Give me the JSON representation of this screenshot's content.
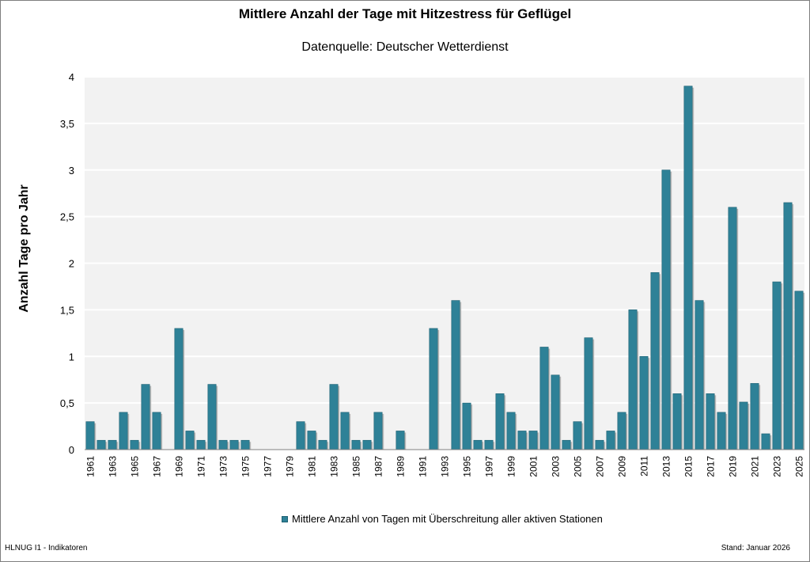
{
  "footer": {
    "left": "HLNUG I1 - Indikatoren",
    "right": "Stand: Januar 2026"
  },
  "colors": {
    "bar": "#2e8197",
    "bar_edge": "#1e6173",
    "plot_bg": "#f2f2f2",
    "grid": "#ffffff"
  },
  "chart_data": {
    "type": "bar",
    "title": "Mittlere Anzahl der Tage mit Hitzestress für Geflügel",
    "subtitle": "Datenquelle:  Deutscher Wetterdienst",
    "xlabel": "",
    "ylabel": "Anzahl Tage pro Jahr",
    "ylim": [
      0,
      4
    ],
    "yticks": [
      0,
      0.5,
      1,
      1.5,
      2,
      2.5,
      3,
      3.5,
      4
    ],
    "ytick_labels": [
      "0",
      "0,5",
      "1",
      "1,5",
      "2",
      "2,5",
      "3",
      "3,5",
      "4"
    ],
    "grid": true,
    "legend_position": "bottom",
    "categories": [
      "1961",
      "1962",
      "1963",
      "1964",
      "1965",
      "1966",
      "1967",
      "1968",
      "1969",
      "1970",
      "1971",
      "1972",
      "1973",
      "1974",
      "1975",
      "1976",
      "1977",
      "1978",
      "1979",
      "1980",
      "1981",
      "1982",
      "1983",
      "1984",
      "1985",
      "1986",
      "1987",
      "1988",
      "1989",
      "1990",
      "1991",
      "1992",
      "1993",
      "1994",
      "1995",
      "1996",
      "1997",
      "1998",
      "1999",
      "2000",
      "2001",
      "2002",
      "2003",
      "2004",
      "2005",
      "2006",
      "2007",
      "2008",
      "2009",
      "2010",
      "2011",
      "2012",
      "2013",
      "2014",
      "2015",
      "2016",
      "2017",
      "2018",
      "2019",
      "2020",
      "2021",
      "2022",
      "2023",
      "2024",
      "2025"
    ],
    "xtick_labels_shown": [
      "1961",
      "1963",
      "1965",
      "1967",
      "1969",
      "1971",
      "1973",
      "1975",
      "1977",
      "1979",
      "1981",
      "1983",
      "1985",
      "1987",
      "1989",
      "1991",
      "1993",
      "1995",
      "1997",
      "1999",
      "2001",
      "2003",
      "2005",
      "2007",
      "2009",
      "2011",
      "2013",
      "2015",
      "2017",
      "2019",
      "2021",
      "2023",
      "2025"
    ],
    "series": [
      {
        "name": "Mittlere Anzahl von Tagen mit Überschreitung aller aktiven Stationen",
        "values": [
          0.3,
          0.1,
          0.1,
          0.4,
          0.1,
          0.7,
          0.4,
          0,
          1.3,
          0.2,
          0.1,
          0.7,
          0.1,
          0.1,
          0.1,
          0,
          0,
          0,
          0,
          0.3,
          0.2,
          0.1,
          0.7,
          0.4,
          0.1,
          0.1,
          0.4,
          0,
          0.2,
          0,
          0,
          1.3,
          0,
          1.6,
          0.5,
          0.1,
          0.1,
          0.6,
          0.4,
          0.2,
          0.2,
          1.1,
          0.8,
          0.1,
          0.3,
          1.2,
          0.1,
          0.2,
          0.4,
          1.5,
          1.0,
          1.9,
          3.0,
          0.6,
          3.9,
          1.6,
          0.6,
          0.4,
          2.6,
          0.51,
          0.71,
          0.17,
          1.8,
          2.65,
          1.7
        ]
      }
    ]
  }
}
